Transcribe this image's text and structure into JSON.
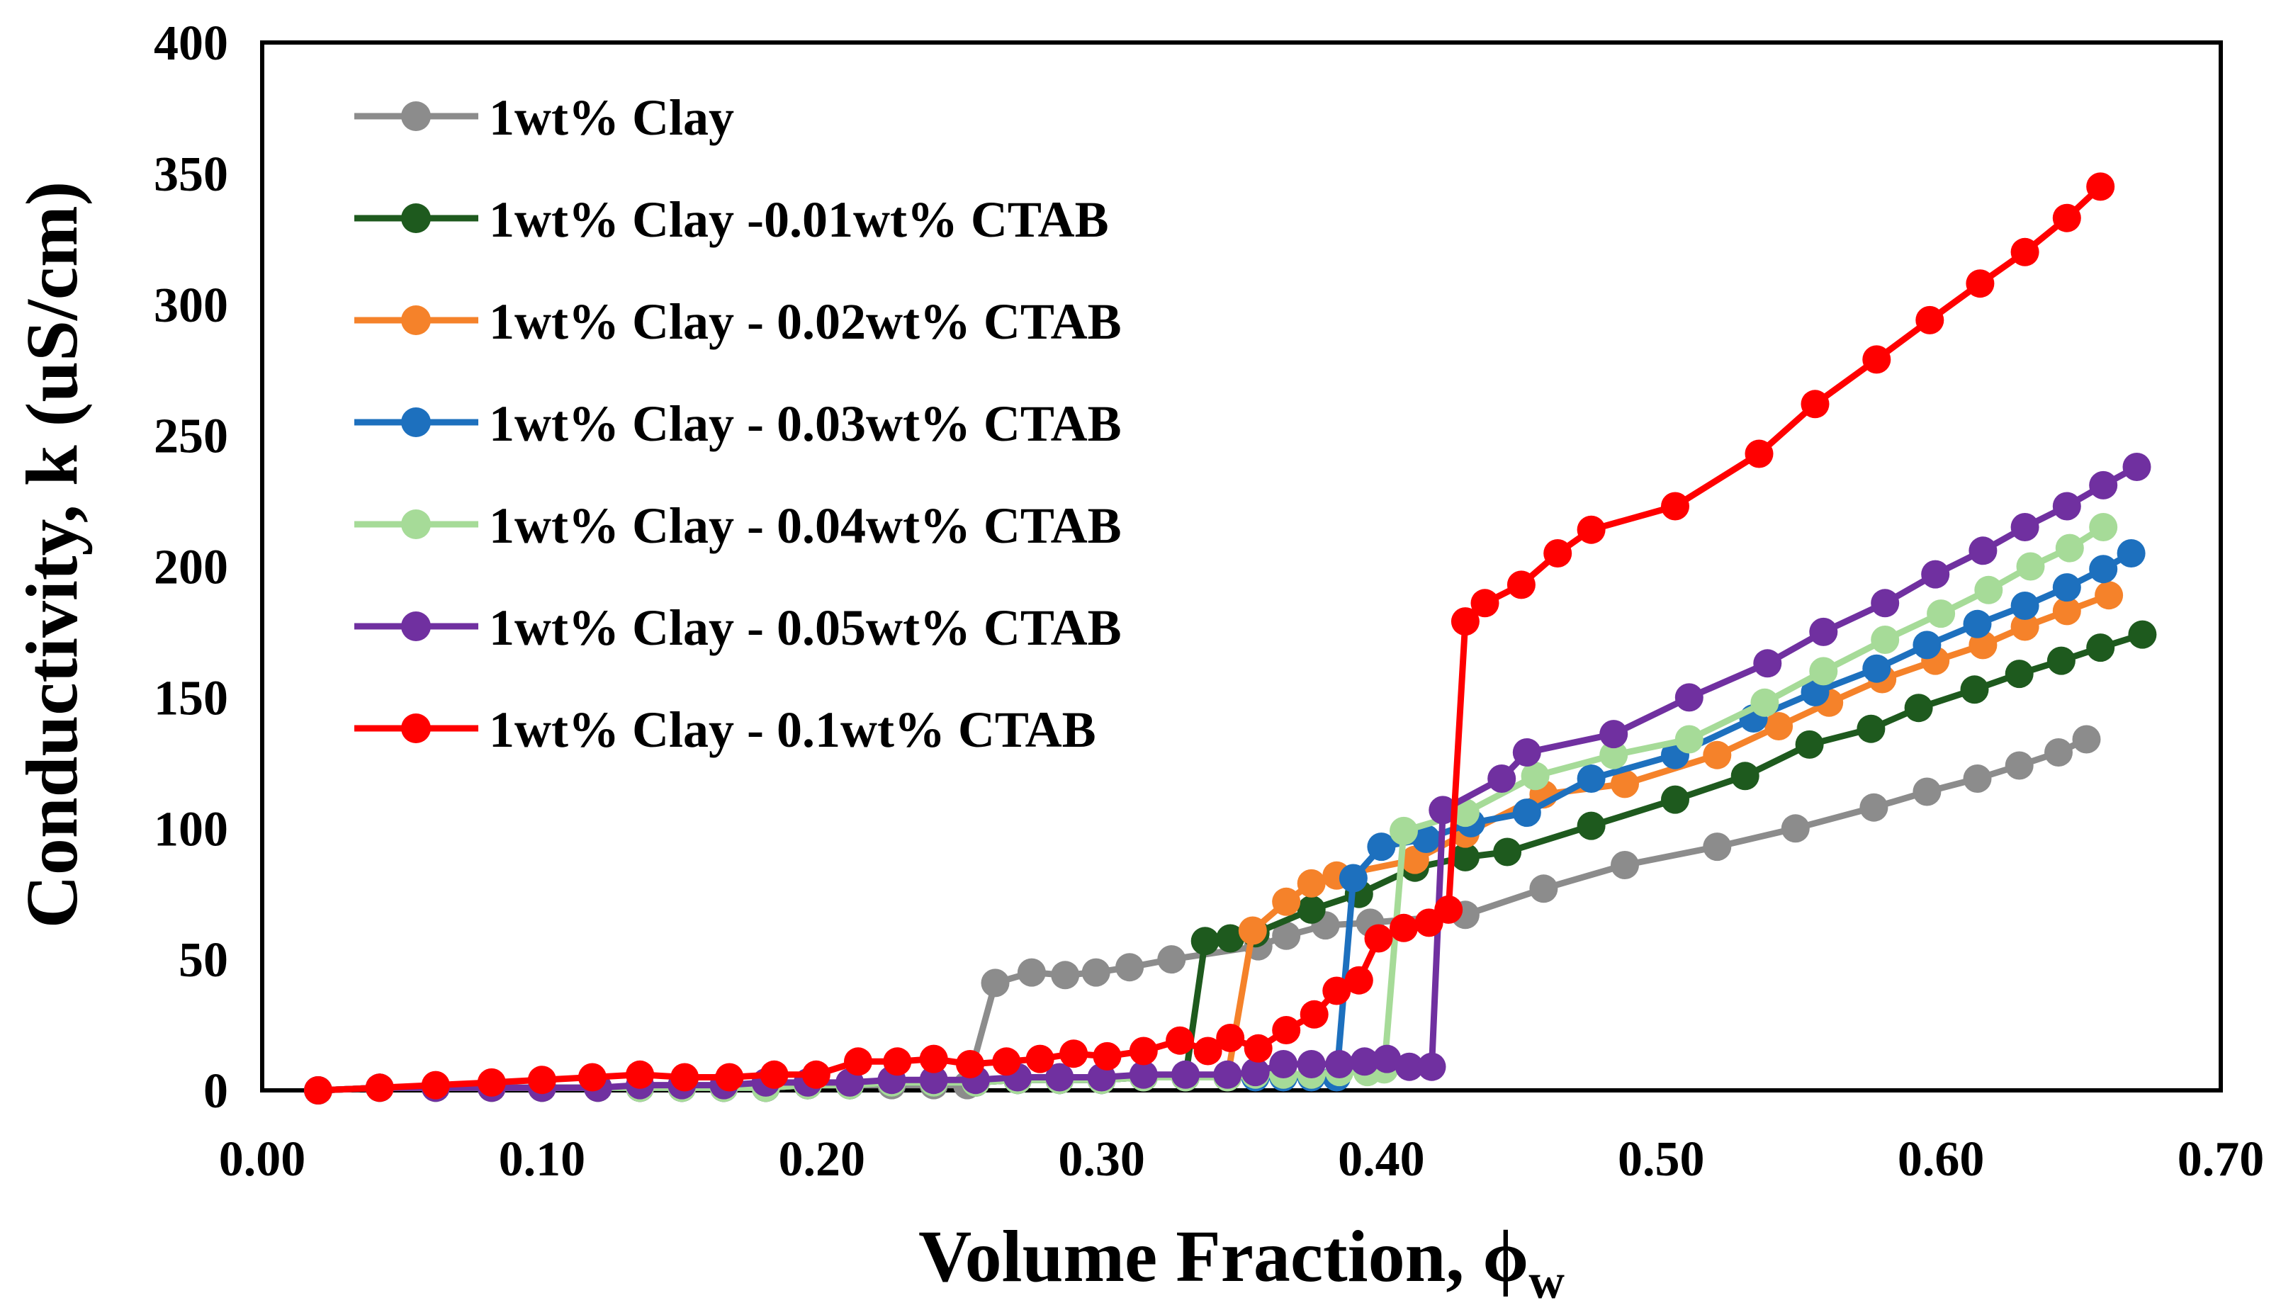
{
  "chart_data": {
    "type": "line",
    "title": "",
    "xlabel": "Volume Fraction, ",
    "xlabel_symbol": "ϕ",
    "xlabel_subscript": "w",
    "ylabel": "Conductivity, k (uS/cm)",
    "xlim": [
      0.0,
      0.7
    ],
    "ylim": [
      0,
      400
    ],
    "xticks": [
      "0.00",
      "0.10",
      "0.20",
      "0.30",
      "0.40",
      "0.50",
      "0.60",
      "0.70"
    ],
    "yticks": [
      "0",
      "50",
      "100",
      "150",
      "200",
      "250",
      "300",
      "350",
      "400"
    ],
    "grid": false,
    "legend_position": "top-left",
    "series": [
      {
        "name": "1wt% Clay",
        "color": "#8c8c8c",
        "points": [
          [
            0.02,
            0
          ],
          [
            0.042,
            1
          ],
          [
            0.062,
            1
          ],
          [
            0.082,
            1
          ],
          [
            0.1,
            1
          ],
          [
            0.12,
            1
          ],
          [
            0.135,
            1
          ],
          [
            0.15,
            1
          ],
          [
            0.165,
            1
          ],
          [
            0.18,
            1
          ],
          [
            0.195,
            2
          ],
          [
            0.21,
            2
          ],
          [
            0.225,
            2
          ],
          [
            0.24,
            2
          ],
          [
            0.252,
            2
          ],
          [
            0.262,
            41
          ],
          [
            0.275,
            45
          ],
          [
            0.287,
            44
          ],
          [
            0.298,
            45
          ],
          [
            0.31,
            47
          ],
          [
            0.325,
            50
          ],
          [
            0.356,
            55
          ],
          [
            0.366,
            59
          ],
          [
            0.38,
            63
          ],
          [
            0.396,
            64
          ],
          [
            0.43,
            67
          ],
          [
            0.458,
            77
          ],
          [
            0.487,
            86
          ],
          [
            0.52,
            93
          ],
          [
            0.548,
            100
          ],
          [
            0.576,
            108
          ],
          [
            0.595,
            114
          ],
          [
            0.613,
            119
          ],
          [
            0.628,
            124
          ],
          [
            0.642,
            129
          ],
          [
            0.652,
            134
          ]
        ]
      },
      {
        "name": "1wt% Clay -0.01wt% CTAB",
        "color": "#1e5a1e",
        "points": [
          [
            0.02,
            0
          ],
          [
            0.042,
            1
          ],
          [
            0.062,
            1
          ],
          [
            0.082,
            1
          ],
          [
            0.1,
            1
          ],
          [
            0.12,
            1
          ],
          [
            0.135,
            1
          ],
          [
            0.15,
            1
          ],
          [
            0.165,
            1
          ],
          [
            0.18,
            1
          ],
          [
            0.195,
            2
          ],
          [
            0.21,
            2
          ],
          [
            0.225,
            3
          ],
          [
            0.24,
            3
          ],
          [
            0.255,
            3
          ],
          [
            0.27,
            4
          ],
          [
            0.285,
            4
          ],
          [
            0.3,
            4
          ],
          [
            0.315,
            5
          ],
          [
            0.33,
            5
          ],
          [
            0.337,
            57
          ],
          [
            0.346,
            58
          ],
          [
            0.355,
            60
          ],
          [
            0.375,
            69
          ],
          [
            0.392,
            75
          ],
          [
            0.412,
            85
          ],
          [
            0.43,
            89
          ],
          [
            0.445,
            91
          ],
          [
            0.475,
            101
          ],
          [
            0.505,
            111
          ],
          [
            0.53,
            120
          ],
          [
            0.553,
            132
          ],
          [
            0.575,
            138
          ],
          [
            0.592,
            146
          ],
          [
            0.612,
            153
          ],
          [
            0.628,
            159
          ],
          [
            0.643,
            164
          ],
          [
            0.657,
            169
          ],
          [
            0.672,
            174
          ]
        ]
      },
      {
        "name": "1wt% Clay - 0.02wt% CTAB",
        "color": "#f5822a",
        "points": [
          [
            0.02,
            0
          ],
          [
            0.042,
            1
          ],
          [
            0.062,
            1
          ],
          [
            0.082,
            1
          ],
          [
            0.1,
            1
          ],
          [
            0.12,
            1
          ],
          [
            0.135,
            1
          ],
          [
            0.15,
            1
          ],
          [
            0.165,
            1
          ],
          [
            0.18,
            1
          ],
          [
            0.195,
            2
          ],
          [
            0.21,
            2
          ],
          [
            0.225,
            3
          ],
          [
            0.24,
            3
          ],
          [
            0.255,
            3
          ],
          [
            0.27,
            4
          ],
          [
            0.285,
            4
          ],
          [
            0.3,
            4
          ],
          [
            0.315,
            5
          ],
          [
            0.33,
            5
          ],
          [
            0.345,
            5
          ],
          [
            0.354,
            61
          ],
          [
            0.366,
            72
          ],
          [
            0.375,
            79
          ],
          [
            0.384,
            82
          ],
          [
            0.412,
            88
          ],
          [
            0.43,
            98
          ],
          [
            0.458,
            113
          ],
          [
            0.487,
            117
          ],
          [
            0.52,
            128
          ],
          [
            0.542,
            139
          ],
          [
            0.56,
            148
          ],
          [
            0.579,
            157
          ],
          [
            0.598,
            164
          ],
          [
            0.615,
            170
          ],
          [
            0.63,
            177
          ],
          [
            0.645,
            183
          ],
          [
            0.66,
            189
          ]
        ]
      },
      {
        "name": "1wt% Clay - 0.03wt% CTAB",
        "color": "#1d70be",
        "points": [
          [
            0.02,
            0
          ],
          [
            0.042,
            1
          ],
          [
            0.062,
            1
          ],
          [
            0.082,
            1
          ],
          [
            0.1,
            1
          ],
          [
            0.12,
            1
          ],
          [
            0.135,
            1
          ],
          [
            0.15,
            1
          ],
          [
            0.165,
            1
          ],
          [
            0.18,
            1
          ],
          [
            0.195,
            2
          ],
          [
            0.21,
            2
          ],
          [
            0.225,
            3
          ],
          [
            0.24,
            3
          ],
          [
            0.255,
            3
          ],
          [
            0.27,
            4
          ],
          [
            0.285,
            4
          ],
          [
            0.3,
            4
          ],
          [
            0.315,
            5
          ],
          [
            0.33,
            5
          ],
          [
            0.345,
            5
          ],
          [
            0.355,
            5
          ],
          [
            0.365,
            5
          ],
          [
            0.375,
            5
          ],
          [
            0.384,
            5
          ],
          [
            0.39,
            81
          ],
          [
            0.4,
            93
          ],
          [
            0.416,
            96
          ],
          [
            0.432,
            102
          ],
          [
            0.452,
            106
          ],
          [
            0.475,
            119
          ],
          [
            0.505,
            128
          ],
          [
            0.533,
            142
          ],
          [
            0.555,
            152
          ],
          [
            0.577,
            161
          ],
          [
            0.595,
            170
          ],
          [
            0.613,
            178
          ],
          [
            0.63,
            185
          ],
          [
            0.645,
            192
          ],
          [
            0.658,
            199
          ],
          [
            0.668,
            205
          ]
        ]
      },
      {
        "name": "1wt% Clay - 0.04wt% CTAB",
        "color": "#a6db98",
        "points": [
          [
            0.02,
            0
          ],
          [
            0.042,
            1
          ],
          [
            0.062,
            1
          ],
          [
            0.082,
            1
          ],
          [
            0.1,
            1
          ],
          [
            0.12,
            1
          ],
          [
            0.135,
            1
          ],
          [
            0.15,
            1
          ],
          [
            0.165,
            1
          ],
          [
            0.18,
            1
          ],
          [
            0.195,
            2
          ],
          [
            0.21,
            2
          ],
          [
            0.225,
            3
          ],
          [
            0.24,
            3
          ],
          [
            0.255,
            3
          ],
          [
            0.27,
            4
          ],
          [
            0.285,
            4
          ],
          [
            0.3,
            4
          ],
          [
            0.315,
            5
          ],
          [
            0.33,
            5
          ],
          [
            0.345,
            5
          ],
          [
            0.355,
            6
          ],
          [
            0.365,
            6
          ],
          [
            0.375,
            6
          ],
          [
            0.385,
            7
          ],
          [
            0.395,
            7
          ],
          [
            0.401,
            8
          ],
          [
            0.408,
            99
          ],
          [
            0.43,
            106
          ],
          [
            0.455,
            120
          ],
          [
            0.483,
            128
          ],
          [
            0.51,
            134
          ],
          [
            0.537,
            148
          ],
          [
            0.558,
            160
          ],
          [
            0.58,
            172
          ],
          [
            0.6,
            182
          ],
          [
            0.617,
            191
          ],
          [
            0.632,
            200
          ],
          [
            0.646,
            207
          ],
          [
            0.658,
            215
          ]
        ]
      },
      {
        "name": "1wt% Clay - 0.05wt% CTAB",
        "color": "#7030a0",
        "points": [
          [
            0.02,
            0
          ],
          [
            0.042,
            1
          ],
          [
            0.062,
            1
          ],
          [
            0.082,
            1
          ],
          [
            0.1,
            1
          ],
          [
            0.12,
            1
          ],
          [
            0.135,
            2
          ],
          [
            0.15,
            2
          ],
          [
            0.165,
            2
          ],
          [
            0.18,
            3
          ],
          [
            0.195,
            3
          ],
          [
            0.21,
            3
          ],
          [
            0.225,
            4
          ],
          [
            0.24,
            4
          ],
          [
            0.255,
            4
          ],
          [
            0.27,
            5
          ],
          [
            0.285,
            5
          ],
          [
            0.3,
            5
          ],
          [
            0.315,
            6
          ],
          [
            0.33,
            6
          ],
          [
            0.345,
            6
          ],
          [
            0.355,
            7
          ],
          [
            0.365,
            10
          ],
          [
            0.375,
            10
          ],
          [
            0.385,
            10
          ],
          [
            0.394,
            11
          ],
          [
            0.402,
            12
          ],
          [
            0.41,
            9
          ],
          [
            0.418,
            9
          ],
          [
            0.422,
            107
          ],
          [
            0.443,
            119
          ],
          [
            0.452,
            129
          ],
          [
            0.483,
            136
          ],
          [
            0.51,
            150
          ],
          [
            0.538,
            163
          ],
          [
            0.558,
            175
          ],
          [
            0.58,
            186
          ],
          [
            0.598,
            197
          ],
          [
            0.615,
            206
          ],
          [
            0.63,
            215
          ],
          [
            0.645,
            223
          ],
          [
            0.658,
            231
          ],
          [
            0.67,
            238
          ]
        ]
      },
      {
        "name": "1wt% Clay - 0.1wt% CTAB",
        "color": "#ff0000",
        "points": [
          [
            0.02,
            0
          ],
          [
            0.042,
            1
          ],
          [
            0.062,
            2
          ],
          [
            0.082,
            3
          ],
          [
            0.1,
            4
          ],
          [
            0.118,
            5
          ],
          [
            0.135,
            6
          ],
          [
            0.151,
            5
          ],
          [
            0.167,
            5
          ],
          [
            0.183,
            6
          ],
          [
            0.198,
            6
          ],
          [
            0.213,
            11
          ],
          [
            0.227,
            11
          ],
          [
            0.24,
            12
          ],
          [
            0.253,
            10
          ],
          [
            0.266,
            11
          ],
          [
            0.278,
            12
          ],
          [
            0.29,
            14
          ],
          [
            0.302,
            13
          ],
          [
            0.315,
            15
          ],
          [
            0.328,
            19
          ],
          [
            0.338,
            15
          ],
          [
            0.346,
            20
          ],
          [
            0.356,
            16
          ],
          [
            0.366,
            23
          ],
          [
            0.376,
            29
          ],
          [
            0.384,
            38
          ],
          [
            0.392,
            42
          ],
          [
            0.399,
            58
          ],
          [
            0.408,
            62
          ],
          [
            0.417,
            64
          ],
          [
            0.424,
            69
          ],
          [
            0.43,
            179
          ],
          [
            0.437,
            186
          ],
          [
            0.45,
            193
          ],
          [
            0.463,
            205
          ],
          [
            0.475,
            214
          ],
          [
            0.505,
            223
          ],
          [
            0.535,
            243
          ],
          [
            0.555,
            262
          ],
          [
            0.577,
            279
          ],
          [
            0.596,
            294
          ],
          [
            0.614,
            308
          ],
          [
            0.63,
            320
          ],
          [
            0.645,
            333
          ],
          [
            0.657,
            345
          ]
        ]
      }
    ]
  }
}
